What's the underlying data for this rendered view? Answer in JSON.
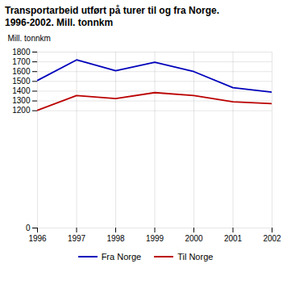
{
  "chart_data": {
    "type": "line",
    "title": "Transportarbeid utført på turer til og fra Norge.",
    "subtitle": "1996-2002. Mill. tonnkm",
    "ylabel": "Mill. tonnkm",
    "x": [
      1996,
      1997,
      1998,
      1999,
      2000,
      2001,
      2002
    ],
    "series": [
      {
        "name": "Fra Norge",
        "color": "#0000bb",
        "values": [
          1510,
          1720,
          1610,
          1695,
          1600,
          1435,
          1390
        ]
      },
      {
        "name": "Til Norge",
        "color": "#bb0000",
        "values": [
          1205,
          1355,
          1325,
          1385,
          1355,
          1292,
          1272
        ]
      }
    ],
    "xlim": [
      1996,
      2002
    ],
    "xticks": [
      1996,
      1997,
      1998,
      1999,
      2000,
      2001,
      2002
    ],
    "ylim": [
      0,
      1800
    ],
    "yticks": [
      0,
      1200,
      1300,
      1400,
      1500,
      1600,
      1700,
      1800
    ],
    "grid": true,
    "legend": "bottom"
  }
}
